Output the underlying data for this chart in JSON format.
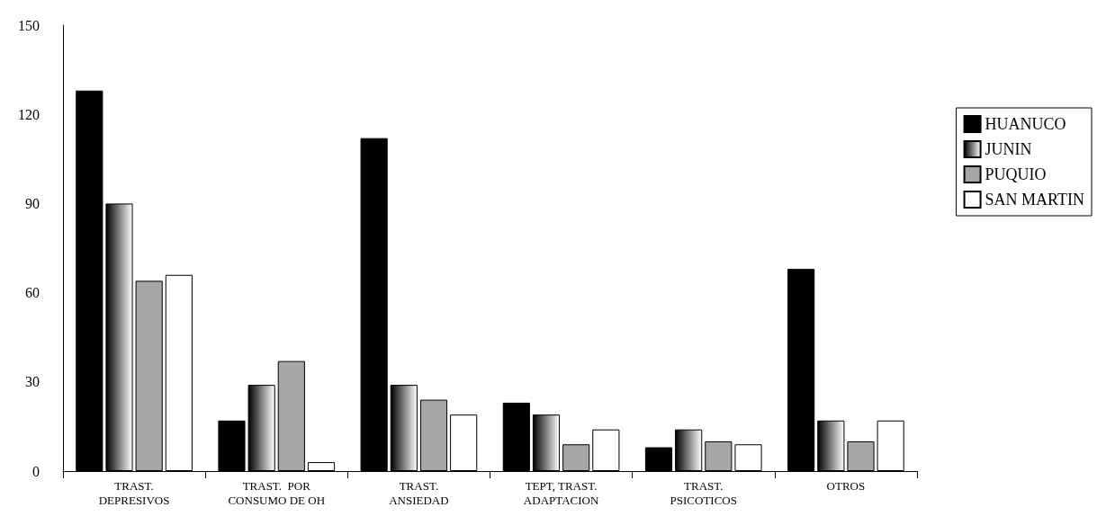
{
  "chart_data": {
    "type": "bar",
    "categories": [
      "TRAST.\nDEPRESIVOS",
      "TRAST.  POR\nCONSUMO DE OH",
      "TRAST.\nANSIEDAD",
      "TEPT, TRAST.\nADAPTACION",
      "TRAST.\nPSICOTICOS",
      "OTROS"
    ],
    "series": [
      {
        "name": "HUANUCO",
        "color": "#000000",
        "values": [
          128,
          17,
          112,
          23,
          8,
          68
        ]
      },
      {
        "name": "JUNIN",
        "color": "#000000",
        "values": [
          90,
          29,
          29,
          19,
          14,
          17
        ]
      },
      {
        "name": "PUQUIO",
        "color": "#a6a6a6",
        "values": [
          64,
          37,
          24,
          9,
          10,
          10
        ]
      },
      {
        "name": "SAN MARTIN",
        "color": "#ffffff",
        "values": [
          66,
          3,
          19,
          14,
          9,
          17
        ]
      }
    ],
    "ylim": [
      0,
      150
    ],
    "yticks": [
      0,
      30,
      60,
      90,
      120,
      150
    ],
    "grid": false,
    "legend": "right"
  }
}
